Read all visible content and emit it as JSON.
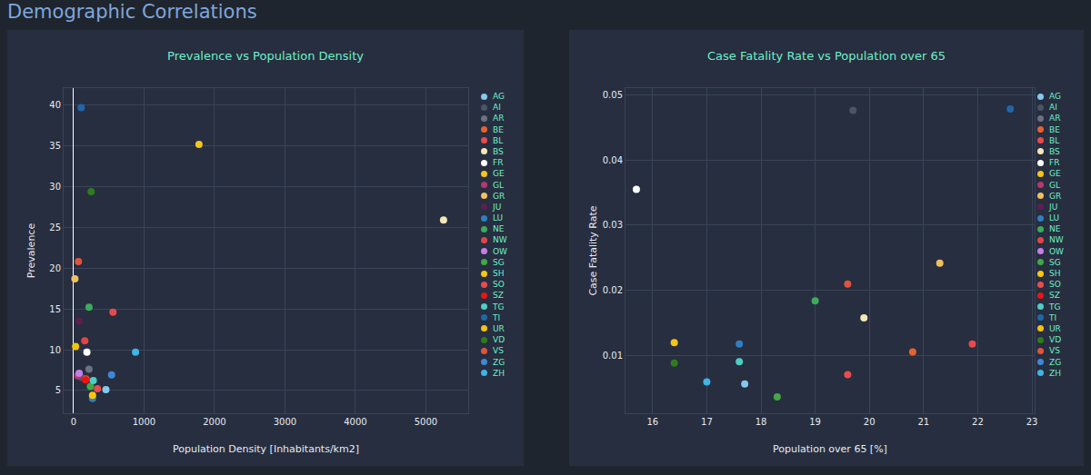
{
  "page_title": "Demographic Correlations",
  "chart_data": [
    {
      "type": "scatter",
      "title": "Prevalence vs Population Density",
      "x_label": "Population Density [Inhabitants/km2]",
      "y_label": "Prevalence",
      "xlim": [
        -140,
        5600
      ],
      "xticks": [
        0,
        1000,
        2000,
        3000,
        4000,
        5000
      ],
      "ylim": [
        2.2,
        42.1
      ],
      "yticks": [
        5,
        10,
        15,
        20,
        25,
        30,
        35,
        40
      ],
      "grid": true,
      "legend": "right",
      "series": [
        {
          "name": "AG",
          "color": "#86c8ee",
          "x": [
            460
          ],
          "values": [
            5.1
          ]
        },
        {
          "name": "AI",
          "color": "#4a5568",
          "x": [
            110
          ],
          "values": [
            6.6
          ]
        },
        {
          "name": "AR",
          "color": "#6b7280",
          "x": [
            220
          ],
          "values": [
            7.6
          ]
        },
        {
          "name": "BE",
          "color": "#e8622c",
          "x": [
            175
          ],
          "values": [
            6.4
          ]
        },
        {
          "name": "BL",
          "color": "#e84a4a",
          "x": [
            560
          ],
          "values": [
            14.6
          ]
        },
        {
          "name": "BS",
          "color": "#f5e6b8",
          "x": [
            5250
          ],
          "values": [
            25.9
          ]
        },
        {
          "name": "FR",
          "color": "#ffffff",
          "x": [
            190
          ],
          "values": [
            9.7
          ]
        },
        {
          "name": "GE",
          "color": "#f5c518",
          "x": [
            1780
          ],
          "values": [
            35.2
          ]
        },
        {
          "name": "GL",
          "color": "#b5386f",
          "x": [
            60
          ],
          "values": [
            6.8
          ]
        },
        {
          "name": "GR",
          "color": "#f0c060",
          "x": [
            20
          ],
          "values": [
            18.7
          ]
        },
        {
          "name": "JU",
          "color": "#5c1f4f",
          "x": [
            80
          ],
          "values": [
            13.5
          ]
        },
        {
          "name": "LU",
          "color": "#2f7fc1",
          "x": [
            270
          ],
          "values": [
            4.0
          ]
        },
        {
          "name": "NE",
          "color": "#3cab5a",
          "x": [
            220
          ],
          "values": [
            15.2
          ]
        },
        {
          "name": "NW",
          "color": "#e04545",
          "x": [
            160
          ],
          "values": [
            11.1
          ]
        },
        {
          "name": "OW",
          "color": "#c77de8",
          "x": [
            80
          ],
          "values": [
            7.1
          ]
        },
        {
          "name": "SG",
          "color": "#43a843",
          "x": [
            240
          ],
          "values": [
            5.5
          ]
        },
        {
          "name": "SH",
          "color": "#f9c80e",
          "x": [
            270
          ],
          "values": [
            4.4
          ]
        },
        {
          "name": "SO",
          "color": "#e84c4c",
          "x": [
            340
          ],
          "values": [
            5.2
          ]
        },
        {
          "name": "SZ",
          "color": "#e81515",
          "x": [
            170
          ],
          "values": [
            6.3
          ]
        },
        {
          "name": "TG",
          "color": "#4ecdc4",
          "x": [
            280
          ],
          "values": [
            6.2
          ]
        },
        {
          "name": "TI",
          "color": "#2166a8",
          "x": [
            110
          ],
          "values": [
            39.7
          ]
        },
        {
          "name": "UR",
          "color": "#f2c40f",
          "x": [
            30
          ],
          "values": [
            10.4
          ]
        },
        {
          "name": "VD",
          "color": "#2e7d1a",
          "x": [
            250
          ],
          "values": [
            29.4
          ]
        },
        {
          "name": "VS",
          "color": "#e0533d",
          "x": [
            70
          ],
          "values": [
            20.8
          ]
        },
        {
          "name": "ZG",
          "color": "#3f88d6",
          "x": [
            540
          ],
          "values": [
            6.9
          ]
        },
        {
          "name": "ZH",
          "color": "#40b4e5",
          "x": [
            880
          ],
          "values": [
            9.7
          ]
        }
      ]
    },
    {
      "type": "scatter",
      "title": "Case Fatality Rate vs Population over 65",
      "x_label": "Population over 65 [%]",
      "y_label": "Case Fatality Rate",
      "xlim": [
        15.5,
        23.05
      ],
      "xticks": [
        16,
        17,
        18,
        19,
        20,
        21,
        22,
        23
      ],
      "ylim": [
        0.0012,
        0.051
      ],
      "yticks": [
        0.01,
        0.02,
        0.03,
        0.04,
        0.05
      ],
      "grid": true,
      "legend": "right",
      "series": [
        {
          "name": "AG",
          "color": "#86c8ee",
          "x": [
            17.7
          ],
          "values": [
            0.0057
          ]
        },
        {
          "name": "AI",
          "color": "#4a5568",
          "x": [
            19.7
          ],
          "values": [
            0.0476
          ]
        },
        {
          "name": "AR",
          "color": "#6b7280",
          "x": [
            null
          ],
          "values": [
            null
          ]
        },
        {
          "name": "BE",
          "color": "#e8622c",
          "x": [
            20.8
          ],
          "values": [
            0.0106
          ]
        },
        {
          "name": "BL",
          "color": "#e84a4a",
          "x": [
            21.9
          ],
          "values": [
            0.0118
          ]
        },
        {
          "name": "BS",
          "color": "#f5e6b8",
          "x": [
            19.9
          ],
          "values": [
            0.0158
          ]
        },
        {
          "name": "FR",
          "color": "#ffffff",
          "x": [
            15.7
          ],
          "values": [
            0.0355
          ]
        },
        {
          "name": "GE",
          "color": "#f5c518",
          "x": [
            16.4
          ],
          "values": [
            0.012
          ]
        },
        {
          "name": "GL",
          "color": "#b5386f",
          "x": [
            null
          ],
          "values": [
            null
          ]
        },
        {
          "name": "GR",
          "color": "#f0c060",
          "x": [
            21.3
          ],
          "values": [
            0.0242
          ]
        },
        {
          "name": "JU",
          "color": "#5c1f4f",
          "x": [
            null
          ],
          "values": [
            null
          ]
        },
        {
          "name": "LU",
          "color": "#2f7fc1",
          "x": [
            17.6
          ],
          "values": [
            0.0118
          ]
        },
        {
          "name": "NE",
          "color": "#3cab5a",
          "x": [
            19.0
          ],
          "values": [
            0.0184
          ]
        },
        {
          "name": "NW",
          "color": "#e04545",
          "x": [
            null
          ],
          "values": [
            null
          ]
        },
        {
          "name": "OW",
          "color": "#c77de8",
          "x": [
            null
          ],
          "values": [
            null
          ]
        },
        {
          "name": "SG",
          "color": "#43a843",
          "x": [
            18.3
          ],
          "values": [
            0.0037
          ]
        },
        {
          "name": "SH",
          "color": "#f9c80e",
          "x": [
            null
          ],
          "values": [
            null
          ]
        },
        {
          "name": "SO",
          "color": "#e84c4c",
          "x": [
            19.6
          ],
          "values": [
            0.0071
          ]
        },
        {
          "name": "SZ",
          "color": "#e81515",
          "x": [
            null
          ],
          "values": [
            null
          ]
        },
        {
          "name": "TG",
          "color": "#4ecdc4",
          "x": [
            17.6
          ],
          "values": [
            0.0091
          ]
        },
        {
          "name": "TI",
          "color": "#2166a8",
          "x": [
            22.6
          ],
          "values": [
            0.0478
          ]
        },
        {
          "name": "UR",
          "color": "#f2c40f",
          "x": [
            null
          ],
          "values": [
            null
          ]
        },
        {
          "name": "VD",
          "color": "#2e7d1a",
          "x": [
            16.4
          ],
          "values": [
            0.0089
          ]
        },
        {
          "name": "VS",
          "color": "#e0533d",
          "x": [
            19.6
          ],
          "values": [
            0.021
          ]
        },
        {
          "name": "ZG",
          "color": "#3f88d6",
          "x": [
            null
          ],
          "values": [
            null
          ]
        },
        {
          "name": "ZH",
          "color": "#40b4e5",
          "x": [
            17.0
          ],
          "values": [
            0.006
          ]
        }
      ]
    }
  ]
}
